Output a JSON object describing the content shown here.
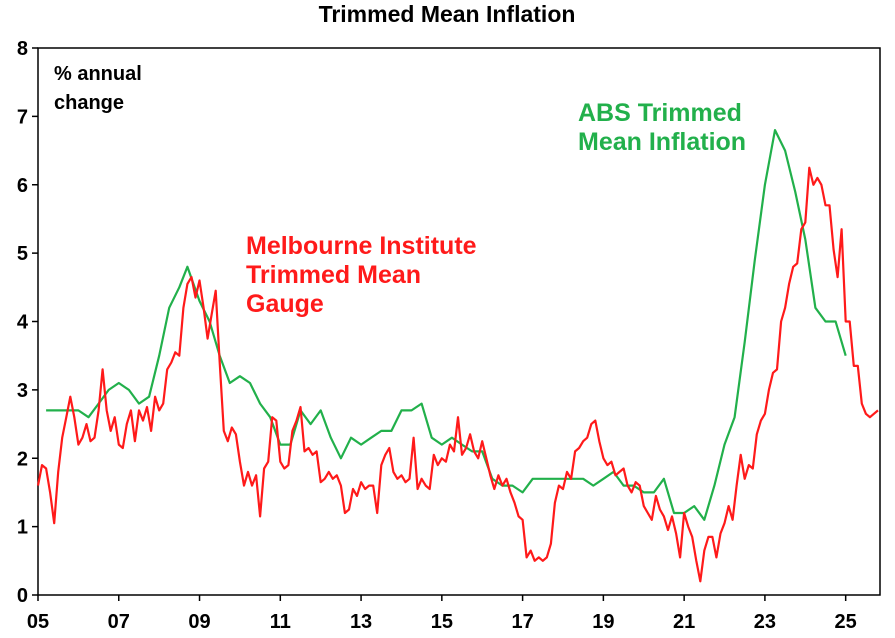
{
  "chart_data": {
    "type": "line",
    "title": "Trimmed Mean Inflation",
    "ylabel": "% annual change",
    "ylabel_lines": [
      "% annual",
      "change"
    ],
    "xlabel": "",
    "x_ticks": [
      "05",
      "07",
      "09",
      "11",
      "13",
      "15",
      "17",
      "19",
      "21",
      "23",
      "25"
    ],
    "x_tick_values": [
      2005,
      2007,
      2009,
      2011,
      2013,
      2015,
      2017,
      2019,
      2021,
      2023,
      2025
    ],
    "y_ticks": [
      0,
      1,
      2,
      3,
      4,
      5,
      6,
      7,
      8
    ],
    "xlim": [
      2005,
      2025
    ],
    "ylim": [
      0,
      8
    ],
    "grid": false,
    "legend": "annotations",
    "series": [
      {
        "name": "ABS Trimmed Mean Inflation",
        "label_lines": [
          "ABS Trimmed",
          "Mean Inflation"
        ],
        "color": "#22b04b",
        "points": [
          [
            2005.2,
            2.7
          ],
          [
            2005.5,
            2.7
          ],
          [
            2005.75,
            2.7
          ],
          [
            2006.0,
            2.7
          ],
          [
            2006.25,
            2.6
          ],
          [
            2006.5,
            2.8
          ],
          [
            2006.75,
            3.0
          ],
          [
            2007.0,
            3.1
          ],
          [
            2007.25,
            3.0
          ],
          [
            2007.5,
            2.8
          ],
          [
            2007.75,
            2.9
          ],
          [
            2008.0,
            3.5
          ],
          [
            2008.25,
            4.2
          ],
          [
            2008.5,
            4.5
          ],
          [
            2008.7,
            4.8
          ],
          [
            2009.0,
            4.3
          ],
          [
            2009.25,
            4.0
          ],
          [
            2009.5,
            3.5
          ],
          [
            2009.75,
            3.1
          ],
          [
            2010.0,
            3.2
          ],
          [
            2010.25,
            3.1
          ],
          [
            2010.5,
            2.8
          ],
          [
            2010.75,
            2.6
          ],
          [
            2011.0,
            2.2
          ],
          [
            2011.25,
            2.2
          ],
          [
            2011.5,
            2.7
          ],
          [
            2011.75,
            2.5
          ],
          [
            2012.0,
            2.7
          ],
          [
            2012.25,
            2.3
          ],
          [
            2012.5,
            2.0
          ],
          [
            2012.75,
            2.3
          ],
          [
            2013.0,
            2.2
          ],
          [
            2013.25,
            2.3
          ],
          [
            2013.5,
            2.4
          ],
          [
            2013.75,
            2.4
          ],
          [
            2014.0,
            2.7
          ],
          [
            2014.25,
            2.7
          ],
          [
            2014.5,
            2.8
          ],
          [
            2014.75,
            2.3
          ],
          [
            2015.0,
            2.2
          ],
          [
            2015.25,
            2.3
          ],
          [
            2015.5,
            2.2
          ],
          [
            2015.75,
            2.1
          ],
          [
            2016.0,
            2.1
          ],
          [
            2016.25,
            1.7
          ],
          [
            2016.5,
            1.6
          ],
          [
            2016.75,
            1.6
          ],
          [
            2017.0,
            1.5
          ],
          [
            2017.25,
            1.7
          ],
          [
            2017.5,
            1.7
          ],
          [
            2017.75,
            1.7
          ],
          [
            2018.0,
            1.7
          ],
          [
            2018.25,
            1.7
          ],
          [
            2018.5,
            1.7
          ],
          [
            2018.75,
            1.6
          ],
          [
            2019.0,
            1.7
          ],
          [
            2019.25,
            1.8
          ],
          [
            2019.5,
            1.6
          ],
          [
            2019.75,
            1.6
          ],
          [
            2020.0,
            1.5
          ],
          [
            2020.25,
            1.5
          ],
          [
            2020.5,
            1.7
          ],
          [
            2020.75,
            1.2
          ],
          [
            2021.0,
            1.2
          ],
          [
            2021.25,
            1.3
          ],
          [
            2021.5,
            1.1
          ],
          [
            2021.75,
            1.6
          ],
          [
            2022.0,
            2.2
          ],
          [
            2022.25,
            2.6
          ],
          [
            2022.5,
            3.7
          ],
          [
            2022.75,
            4.9
          ],
          [
            2023.0,
            6.0
          ],
          [
            2023.25,
            6.8
          ],
          [
            2023.5,
            6.5
          ],
          [
            2023.75,
            5.9
          ],
          [
            2024.0,
            5.2
          ],
          [
            2024.25,
            4.2
          ],
          [
            2024.5,
            4.0
          ],
          [
            2024.75,
            4.0
          ],
          [
            2025.0,
            3.5
          ]
        ]
      },
      {
        "name": "Melbourne Institute Trimmed Mean Gauge",
        "label_lines": [
          "Melbourne Institute",
          "Trimmed Mean",
          "Gauge"
        ],
        "color": "#ff1a1a",
        "points": [
          [
            2005.0,
            1.6
          ],
          [
            2005.1,
            1.9
          ],
          [
            2005.2,
            1.85
          ],
          [
            2005.3,
            1.5
          ],
          [
            2005.4,
            1.05
          ],
          [
            2005.5,
            1.8
          ],
          [
            2005.6,
            2.3
          ],
          [
            2005.7,
            2.6
          ],
          [
            2005.8,
            2.9
          ],
          [
            2005.9,
            2.6
          ],
          [
            2006.0,
            2.2
          ],
          [
            2006.1,
            2.3
          ],
          [
            2006.2,
            2.5
          ],
          [
            2006.3,
            2.25
          ],
          [
            2006.4,
            2.3
          ],
          [
            2006.5,
            2.7
          ],
          [
            2006.6,
            3.3
          ],
          [
            2006.7,
            2.7
          ],
          [
            2006.8,
            2.4
          ],
          [
            2006.9,
            2.6
          ],
          [
            2007.0,
            2.2
          ],
          [
            2007.1,
            2.15
          ],
          [
            2007.2,
            2.5
          ],
          [
            2007.3,
            2.7
          ],
          [
            2007.4,
            2.25
          ],
          [
            2007.5,
            2.7
          ],
          [
            2007.6,
            2.55
          ],
          [
            2007.7,
            2.75
          ],
          [
            2007.8,
            2.4
          ],
          [
            2007.9,
            2.9
          ],
          [
            2008.0,
            2.7
          ],
          [
            2008.1,
            2.8
          ],
          [
            2008.2,
            3.3
          ],
          [
            2008.3,
            3.4
          ],
          [
            2008.4,
            3.55
          ],
          [
            2008.5,
            3.5
          ],
          [
            2008.6,
            4.2
          ],
          [
            2008.7,
            4.55
          ],
          [
            2008.8,
            4.65
          ],
          [
            2008.9,
            4.35
          ],
          [
            2009.0,
            4.6
          ],
          [
            2009.1,
            4.2
          ],
          [
            2009.2,
            3.75
          ],
          [
            2009.3,
            4.1
          ],
          [
            2009.4,
            4.45
          ],
          [
            2009.5,
            3.4
          ],
          [
            2009.6,
            2.4
          ],
          [
            2009.7,
            2.25
          ],
          [
            2009.8,
            2.45
          ],
          [
            2009.9,
            2.35
          ],
          [
            2010.0,
            1.95
          ],
          [
            2010.1,
            1.6
          ],
          [
            2010.2,
            1.8
          ],
          [
            2010.3,
            1.6
          ],
          [
            2010.4,
            1.75
          ],
          [
            2010.5,
            1.15
          ],
          [
            2010.6,
            1.85
          ],
          [
            2010.7,
            1.95
          ],
          [
            2010.8,
            2.6
          ],
          [
            2010.9,
            2.55
          ],
          [
            2011.0,
            1.95
          ],
          [
            2011.1,
            1.85
          ],
          [
            2011.2,
            1.9
          ],
          [
            2011.3,
            2.4
          ],
          [
            2011.4,
            2.55
          ],
          [
            2011.5,
            2.75
          ],
          [
            2011.6,
            2.1
          ],
          [
            2011.7,
            2.15
          ],
          [
            2011.8,
            2.05
          ],
          [
            2011.9,
            2.1
          ],
          [
            2012.0,
            1.65
          ],
          [
            2012.1,
            1.7
          ],
          [
            2012.2,
            1.8
          ],
          [
            2012.3,
            1.7
          ],
          [
            2012.4,
            1.75
          ],
          [
            2012.5,
            1.6
          ],
          [
            2012.6,
            1.2
          ],
          [
            2012.7,
            1.25
          ],
          [
            2012.8,
            1.55
          ],
          [
            2012.9,
            1.45
          ],
          [
            2013.0,
            1.65
          ],
          [
            2013.1,
            1.55
          ],
          [
            2013.2,
            1.6
          ],
          [
            2013.3,
            1.6
          ],
          [
            2013.4,
            1.2
          ],
          [
            2013.5,
            1.9
          ],
          [
            2013.6,
            2.05
          ],
          [
            2013.7,
            2.15
          ],
          [
            2013.8,
            1.8
          ],
          [
            2013.9,
            1.7
          ],
          [
            2014.0,
            1.75
          ],
          [
            2014.1,
            1.65
          ],
          [
            2014.2,
            1.7
          ],
          [
            2014.3,
            2.3
          ],
          [
            2014.4,
            1.55
          ],
          [
            2014.5,
            1.7
          ],
          [
            2014.6,
            1.6
          ],
          [
            2014.7,
            1.55
          ],
          [
            2014.8,
            2.05
          ],
          [
            2014.9,
            1.9
          ],
          [
            2015.0,
            2.0
          ],
          [
            2015.1,
            1.95
          ],
          [
            2015.2,
            2.2
          ],
          [
            2015.3,
            2.1
          ],
          [
            2015.4,
            2.6
          ],
          [
            2015.5,
            2.05
          ],
          [
            2015.6,
            2.15
          ],
          [
            2015.7,
            2.35
          ],
          [
            2015.8,
            2.1
          ],
          [
            2015.9,
            2.0
          ],
          [
            2016.0,
            2.25
          ],
          [
            2016.1,
            2.0
          ],
          [
            2016.2,
            1.75
          ],
          [
            2016.3,
            1.55
          ],
          [
            2016.4,
            1.75
          ],
          [
            2016.5,
            1.6
          ],
          [
            2016.6,
            1.7
          ],
          [
            2016.7,
            1.5
          ],
          [
            2016.8,
            1.35
          ],
          [
            2016.9,
            1.15
          ],
          [
            2017.0,
            1.1
          ],
          [
            2017.1,
            0.55
          ],
          [
            2017.2,
            0.65
          ],
          [
            2017.3,
            0.5
          ],
          [
            2017.4,
            0.55
          ],
          [
            2017.5,
            0.5
          ],
          [
            2017.6,
            0.55
          ],
          [
            2017.7,
            0.75
          ],
          [
            2017.8,
            1.35
          ],
          [
            2017.9,
            1.6
          ],
          [
            2018.0,
            1.55
          ],
          [
            2018.1,
            1.8
          ],
          [
            2018.2,
            1.7
          ],
          [
            2018.3,
            2.1
          ],
          [
            2018.4,
            2.15
          ],
          [
            2018.5,
            2.25
          ],
          [
            2018.6,
            2.3
          ],
          [
            2018.7,
            2.5
          ],
          [
            2018.8,
            2.55
          ],
          [
            2018.9,
            2.25
          ],
          [
            2019.0,
            2.0
          ],
          [
            2019.1,
            1.9
          ],
          [
            2019.2,
            1.95
          ],
          [
            2019.3,
            1.75
          ],
          [
            2019.4,
            1.8
          ],
          [
            2019.5,
            1.85
          ],
          [
            2019.6,
            1.6
          ],
          [
            2019.7,
            1.5
          ],
          [
            2019.8,
            1.65
          ],
          [
            2019.9,
            1.6
          ],
          [
            2020.0,
            1.3
          ],
          [
            2020.1,
            1.2
          ],
          [
            2020.2,
            1.1
          ],
          [
            2020.3,
            1.45
          ],
          [
            2020.4,
            1.25
          ],
          [
            2020.5,
            1.15
          ],
          [
            2020.6,
            0.95
          ],
          [
            2020.7,
            1.15
          ],
          [
            2020.8,
            0.9
          ],
          [
            2020.9,
            0.55
          ],
          [
            2021.0,
            1.2
          ],
          [
            2021.1,
            1.0
          ],
          [
            2021.2,
            0.85
          ],
          [
            2021.3,
            0.5
          ],
          [
            2021.4,
            0.2
          ],
          [
            2021.5,
            0.65
          ],
          [
            2021.6,
            0.85
          ],
          [
            2021.7,
            0.85
          ],
          [
            2021.8,
            0.55
          ],
          [
            2021.9,
            0.9
          ],
          [
            2022.0,
            1.05
          ],
          [
            2022.1,
            1.3
          ],
          [
            2022.2,
            1.1
          ],
          [
            2022.3,
            1.6
          ],
          [
            2022.4,
            2.05
          ],
          [
            2022.5,
            1.7
          ],
          [
            2022.6,
            1.9
          ],
          [
            2022.7,
            1.85
          ],
          [
            2022.8,
            2.35
          ],
          [
            2022.9,
            2.55
          ],
          [
            2023.0,
            2.65
          ],
          [
            2023.1,
            3.0
          ],
          [
            2023.2,
            3.25
          ],
          [
            2023.3,
            3.3
          ],
          [
            2023.4,
            4.0
          ],
          [
            2023.5,
            4.2
          ],
          [
            2023.6,
            4.55
          ],
          [
            2023.7,
            4.8
          ],
          [
            2023.8,
            4.85
          ],
          [
            2023.9,
            5.35
          ],
          [
            2024.0,
            5.45
          ],
          [
            2024.1,
            6.25
          ],
          [
            2024.2,
            6.0
          ],
          [
            2024.3,
            6.1
          ],
          [
            2024.4,
            6.0
          ],
          [
            2024.5,
            5.7
          ],
          [
            2024.6,
            5.7
          ],
          [
            2024.7,
            5.05
          ],
          [
            2024.8,
            4.65
          ],
          [
            2024.9,
            5.35
          ],
          [
            2025.0,
            4.0
          ],
          [
            2025.1,
            4.0
          ],
          [
            2025.2,
            3.35
          ],
          [
            2025.3,
            3.35
          ],
          [
            2025.4,
            2.8
          ],
          [
            2025.5,
            2.65
          ],
          [
            2025.6,
            2.6
          ],
          [
            2025.7,
            2.65
          ],
          [
            2025.8,
            2.7
          ]
        ]
      }
    ]
  }
}
